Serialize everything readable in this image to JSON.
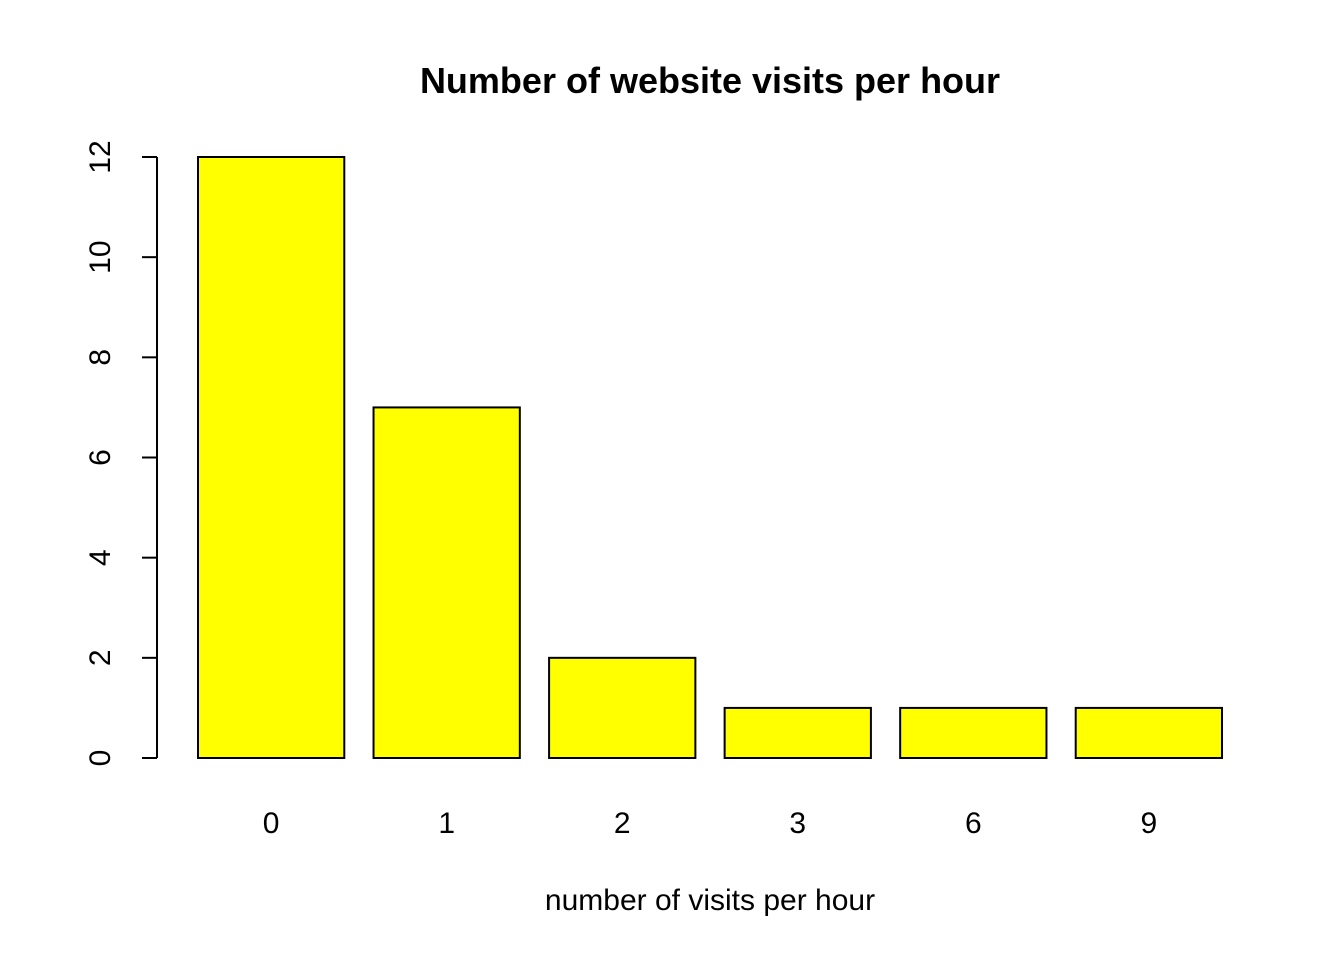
{
  "chart_data": {
    "type": "bar",
    "title": "Number of website visits per hour",
    "xlabel": "number of visits per hour",
    "ylabel": "",
    "categories": [
      "0",
      "1",
      "2",
      "3",
      "6",
      "9"
    ],
    "values": [
      12,
      7,
      2,
      1,
      1,
      1
    ],
    "ylim": [
      0,
      12
    ],
    "y_ticks": [
      "0",
      "2",
      "4",
      "6",
      "8",
      "10",
      "12"
    ],
    "bar_color": "#ffff00",
    "bar_border_color": "#000000",
    "grid": false,
    "legend": "none"
  }
}
